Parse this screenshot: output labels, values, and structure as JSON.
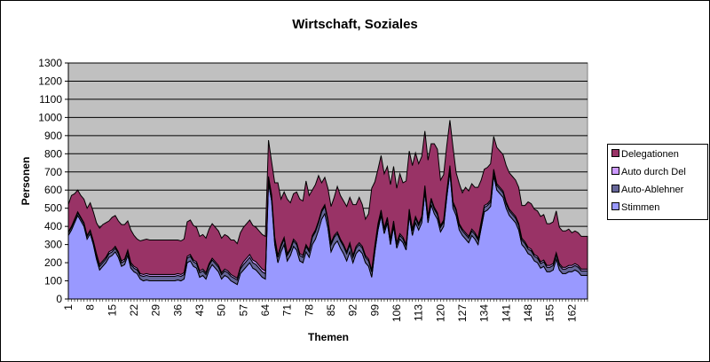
{
  "chart_data": {
    "type": "area",
    "stacked": true,
    "title": "Wirtschaft, Soziales",
    "xlabel": "Themen",
    "ylabel": "Personen",
    "ylim": [
      0,
      1300
    ],
    "yticks": [
      0,
      100,
      200,
      300,
      400,
      500,
      600,
      700,
      800,
      900,
      1000,
      1100,
      1200,
      1300
    ],
    "xtick_labels": [
      "1",
      "8",
      "15",
      "22",
      "29",
      "36",
      "43",
      "50",
      "57",
      "64",
      "71",
      "78",
      "85",
      "92",
      "99",
      "106",
      "113",
      "120",
      "127",
      "134",
      "141",
      "148",
      "155",
      "162"
    ],
    "n_categories": 167,
    "grid": "horizontal",
    "plot_background": "#C0C0C0",
    "legend_position": "right",
    "legend": [
      "Delegationen",
      "Auto durch Del",
      "Auto-Ablehner",
      "Stimmen"
    ],
    "series": [
      {
        "name": "Stimmen",
        "color": "#9999FF",
        "values": [
          350,
          380,
          420,
          460,
          430,
          400,
          330,
          360,
          300,
          220,
          160,
          180,
          200,
          230,
          240,
          260,
          230,
          180,
          190,
          240,
          170,
          150,
          140,
          110,
          100,
          105,
          100,
          100,
          100,
          100,
          100,
          100,
          100,
          100,
          100,
          105,
          100,
          110,
          200,
          210,
          180,
          170,
          120,
          130,
          110,
          160,
          190,
          170,
          150,
          110,
          130,
          120,
          100,
          90,
          80,
          140,
          160,
          180,
          200,
          170,
          160,
          140,
          120,
          110,
          640,
          540,
          300,
          200,
          260,
          300,
          210,
          240,
          290,
          270,
          210,
          200,
          260,
          230,
          300,
          330,
          380,
          440,
          470,
          390,
          260,
          300,
          320,
          280,
          250,
          210,
          260,
          200,
          250,
          270,
          250,
          200,
          180,
          120,
          260,
          380,
          460,
          360,
          420,
          300,
          400,
          280,
          330,
          310,
          270,
          460,
          350,
          420,
          380,
          420,
          590,
          420,
          520,
          470,
          440,
          370,
          400,
          560,
          700,
          500,
          460,
          380,
          350,
          330,
          310,
          350,
          330,
          300,
          390,
          480,
          490,
          510,
          680,
          600,
          580,
          560,
          500,
          460,
          440,
          420,
          380,
          300,
          280,
          250,
          240,
          210,
          200,
          170,
          180,
          150,
          150,
          160,
          220,
          160,
          140,
          140,
          150,
          150,
          160,
          150,
          130,
          130,
          130
        ]
      },
      {
        "name": "Auto-Ablehner",
        "color": "#666699",
        "values": [
          15,
          15,
          15,
          15,
          15,
          15,
          15,
          15,
          15,
          20,
          20,
          20,
          20,
          20,
          20,
          20,
          20,
          20,
          20,
          20,
          20,
          20,
          20,
          20,
          25,
          25,
          25,
          25,
          25,
          25,
          25,
          25,
          25,
          25,
          25,
          25,
          25,
          25,
          25,
          25,
          25,
          25,
          25,
          25,
          25,
          25,
          25,
          25,
          25,
          25,
          25,
          25,
          25,
          25,
          25,
          25,
          30,
          30,
          30,
          30,
          30,
          30,
          30,
          30,
          25,
          25,
          30,
          30,
          30,
          30,
          30,
          30,
          30,
          30,
          30,
          30,
          30,
          30,
          40,
          40,
          40,
          40,
          40,
          40,
          40,
          40,
          40,
          40,
          40,
          40,
          40,
          30,
          30,
          30,
          30,
          30,
          30,
          30,
          25,
          25,
          20,
          20,
          20,
          20,
          20,
          20,
          20,
          20,
          20,
          25,
          25,
          25,
          25,
          25,
          25,
          25,
          25,
          25,
          25,
          25,
          25,
          25,
          25,
          25,
          25,
          25,
          25,
          25,
          25,
          25,
          25,
          25,
          25,
          25,
          25,
          25,
          25,
          25,
          25,
          25,
          25,
          25,
          25,
          25,
          25,
          25,
          25,
          25,
          25,
          25,
          25,
          25,
          25,
          25,
          25,
          25,
          25,
          25,
          25,
          25,
          25,
          25,
          25,
          25,
          25,
          25,
          25,
          25,
          25
        ]
      },
      {
        "name": "Auto durch Del",
        "color": "#CC99FF",
        "values": [
          5,
          5,
          5,
          5,
          5,
          5,
          5,
          5,
          5,
          10,
          10,
          10,
          10,
          10,
          10,
          10,
          10,
          10,
          10,
          10,
          10,
          10,
          10,
          10,
          10,
          10,
          10,
          10,
          10,
          10,
          10,
          10,
          10,
          10,
          10,
          10,
          10,
          10,
          10,
          10,
          10,
          10,
          10,
          10,
          10,
          10,
          10,
          10,
          10,
          10,
          10,
          10,
          10,
          10,
          10,
          10,
          15,
          15,
          15,
          15,
          15,
          15,
          15,
          15,
          10,
          10,
          10,
          10,
          10,
          10,
          10,
          10,
          10,
          10,
          10,
          10,
          10,
          10,
          10,
          10,
          10,
          10,
          10,
          10,
          10,
          10,
          10,
          10,
          10,
          10,
          10,
          10,
          10,
          10,
          10,
          10,
          10,
          10,
          10,
          10,
          10,
          10,
          10,
          10,
          10,
          10,
          10,
          10,
          10,
          10,
          10,
          10,
          10,
          10,
          10,
          10,
          10,
          10,
          10,
          10,
          10,
          10,
          10,
          10,
          10,
          10,
          10,
          10,
          10,
          10,
          10,
          10,
          10,
          10,
          10,
          10,
          10,
          10,
          10,
          10,
          10,
          10,
          10,
          10,
          10,
          10,
          10,
          10,
          10,
          10,
          10,
          10,
          10,
          10,
          10,
          10,
          10,
          10,
          10,
          10,
          10,
          10,
          10,
          10,
          10,
          10,
          10,
          10
        ]
      },
      {
        "name": "Delegationen",
        "color": "#993366",
        "values": [
          150,
          170,
          140,
          120,
          120,
          130,
          150,
          150,
          160,
          170,
          200,
          200,
          190,
          170,
          180,
          170,
          170,
          200,
          190,
          160,
          180,
          170,
          160,
          180,
          190,
          190,
          190,
          190,
          190,
          190,
          190,
          190,
          190,
          190,
          190,
          185,
          185,
          185,
          190,
          190,
          190,
          190,
          190,
          190,
          190,
          190,
          190,
          190,
          190,
          190,
          190,
          190,
          190,
          200,
          190,
          190,
          190,
          190,
          190,
          190,
          190,
          190,
          190,
          190,
          200,
          180,
          300,
          400,
          250,
          250,
          300,
          250,
          250,
          280,
          300,
          300,
          350,
          300,
          250,
          250,
          250,
          150,
          150,
          170,
          200,
          210,
          250,
          240,
          240,
          250,
          250,
          280,
          230,
          250,
          230,
          200,
          250,
          450,
          350,
          300,
          300,
          300,
          280,
          300,
          300,
          300,
          330,
          300,
          350,
          320,
          350,
          350,
          330,
          330,
          300,
          310,
          300,
          350,
          350,
          250,
          250,
          250,
          250,
          300,
          200,
          220,
          200,
          250,
          250,
          250,
          250,
          280,
          230,
          200,
          200,
          200,
          180,
          200,
          200,
          200,
          200,
          200,
          200,
          200,
          200,
          180,
          200,
          250,
          250,
          250,
          250,
          250,
          250,
          230,
          230,
          230,
          230,
          200,
          200,
          200,
          200,
          180,
          180,
          180,
          180,
          180,
          180
        ]
      }
    ]
  }
}
